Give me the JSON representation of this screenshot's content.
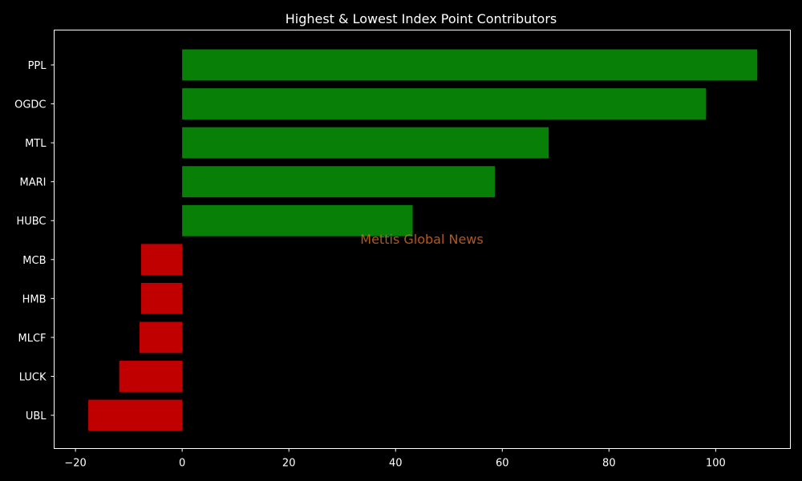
{
  "chart_data": {
    "type": "bar",
    "orientation": "horizontal",
    "title": "Highest & Lowest Index Point Contributors",
    "xlabel": "",
    "ylabel": "",
    "categories": [
      "PPL",
      "OGDC",
      "MTL",
      "MARI",
      "HUBC",
      "MCB",
      "HMB",
      "MLCF",
      "LUCK",
      "UBL"
    ],
    "values": [
      107.8,
      98.2,
      68.7,
      58.6,
      43.2,
      -7.7,
      -7.7,
      -8.0,
      -11.8,
      -17.6
    ],
    "colors": [
      "#088008",
      "#088008",
      "#088008",
      "#088008",
      "#088008",
      "#c00000",
      "#c00000",
      "#c00000",
      "#c00000",
      "#c00000"
    ],
    "xlim": [
      -24,
      114
    ],
    "xticks": [
      -20,
      0,
      20,
      40,
      60,
      80,
      100
    ],
    "xtick_labels": [
      "−20",
      "0",
      "20",
      "40",
      "60",
      "80",
      "100"
    ],
    "grid": false,
    "background": "#000000",
    "positive_color": "#088008",
    "negative_color": "#c00000"
  },
  "watermark": "Mettis Global News"
}
